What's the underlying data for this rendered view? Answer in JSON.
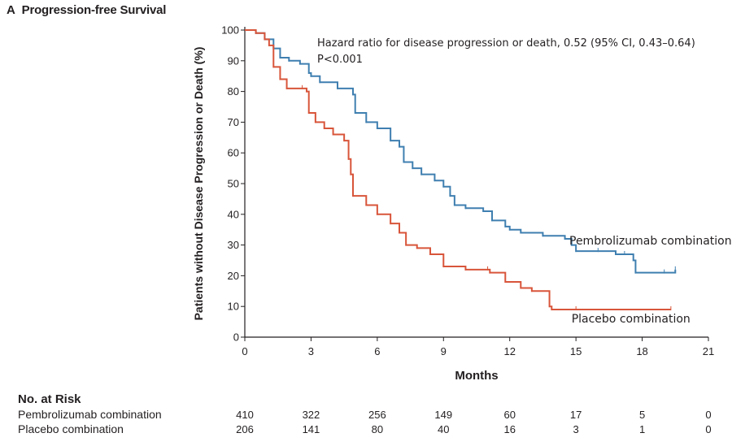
{
  "panel": {
    "letter": "A",
    "title": "Progression-free Survival"
  },
  "chart_data": {
    "type": "line",
    "subtype": "kaplan-meier",
    "xlabel": "Months",
    "ylabel": "Patients without Disease Progression or Death (%)",
    "xlim": [
      0,
      21
    ],
    "ylim": [
      0,
      100
    ],
    "xticks": [
      0,
      3,
      6,
      9,
      12,
      15,
      18,
      21
    ],
    "yticks": [
      0,
      10,
      20,
      30,
      40,
      50,
      60,
      70,
      80,
      90,
      100
    ],
    "grid": false,
    "annotations": [
      "Hazard ratio for disease progression or death, 0.52 (95% CI, 0.43–0.64)",
      "P<0.001"
    ],
    "series": [
      {
        "name": "Pembrolizumab combination",
        "color": "#3f7fb0",
        "points": [
          [
            0,
            100
          ],
          [
            0.5,
            99
          ],
          [
            0.9,
            97
          ],
          [
            1.3,
            94
          ],
          [
            1.6,
            91
          ],
          [
            2.0,
            90
          ],
          [
            2.5,
            89
          ],
          [
            2.9,
            86
          ],
          [
            3.0,
            85
          ],
          [
            3.4,
            83
          ],
          [
            4.2,
            81
          ],
          [
            4.9,
            79
          ],
          [
            5.0,
            73
          ],
          [
            5.5,
            70
          ],
          [
            6.0,
            68
          ],
          [
            6.6,
            64
          ],
          [
            7.0,
            62
          ],
          [
            7.2,
            57
          ],
          [
            7.6,
            55
          ],
          [
            8.0,
            53
          ],
          [
            8.6,
            51
          ],
          [
            9.0,
            49
          ],
          [
            9.3,
            46
          ],
          [
            9.5,
            43
          ],
          [
            10.0,
            42
          ],
          [
            10.8,
            41
          ],
          [
            11.2,
            38
          ],
          [
            11.8,
            36
          ],
          [
            12.0,
            35
          ],
          [
            12.5,
            34
          ],
          [
            13.5,
            33
          ],
          [
            14.5,
            32
          ],
          [
            14.8,
            30
          ],
          [
            15.0,
            28
          ],
          [
            16.0,
            28
          ],
          [
            16.8,
            27
          ],
          [
            17.2,
            27
          ],
          [
            17.6,
            25
          ],
          [
            17.7,
            21
          ],
          [
            19.0,
            21
          ],
          [
            19.5,
            22
          ]
        ],
        "label_end": [
          14.7,
          30.2
        ]
      },
      {
        "name": "Placebo combination",
        "color": "#d8553a",
        "points": [
          [
            0,
            100
          ],
          [
            0.5,
            99
          ],
          [
            0.9,
            97
          ],
          [
            1.1,
            95
          ],
          [
            1.3,
            88
          ],
          [
            1.6,
            84
          ],
          [
            1.9,
            81
          ],
          [
            2.6,
            81
          ],
          [
            2.8,
            80
          ],
          [
            2.9,
            73
          ],
          [
            3.2,
            70
          ],
          [
            3.6,
            68
          ],
          [
            4.0,
            66
          ],
          [
            4.5,
            64
          ],
          [
            4.7,
            58
          ],
          [
            4.8,
            53
          ],
          [
            4.9,
            46
          ],
          [
            5.5,
            43
          ],
          [
            6.0,
            40
          ],
          [
            6.6,
            37
          ],
          [
            7.0,
            34
          ],
          [
            7.3,
            30
          ],
          [
            7.8,
            29
          ],
          [
            8.4,
            27
          ],
          [
            9.0,
            25
          ],
          [
            9.0,
            23
          ],
          [
            10.0,
            22
          ],
          [
            11.0,
            22
          ],
          [
            11.1,
            21
          ],
          [
            11.8,
            18
          ],
          [
            12.5,
            16
          ],
          [
            13.0,
            15
          ],
          [
            13.8,
            14
          ],
          [
            13.8,
            10
          ],
          [
            13.9,
            9
          ],
          [
            15.0,
            9
          ],
          [
            19.3,
            9
          ]
        ],
        "label_end": [
          14.8,
          4.8
        ]
      }
    ]
  },
  "risk_table": {
    "title": "No. at Risk",
    "months": [
      0,
      3,
      6,
      9,
      12,
      15,
      18,
      21
    ],
    "rows": [
      {
        "label": "Pembrolizumab combination",
        "values": [
          "410",
          "322",
          "256",
          "149",
          "60",
          "17",
          "5",
          "0"
        ]
      },
      {
        "label": "Placebo combination",
        "values": [
          "206",
          "141",
          "80",
          "40",
          "16",
          "3",
          "1",
          "0"
        ]
      }
    ]
  }
}
